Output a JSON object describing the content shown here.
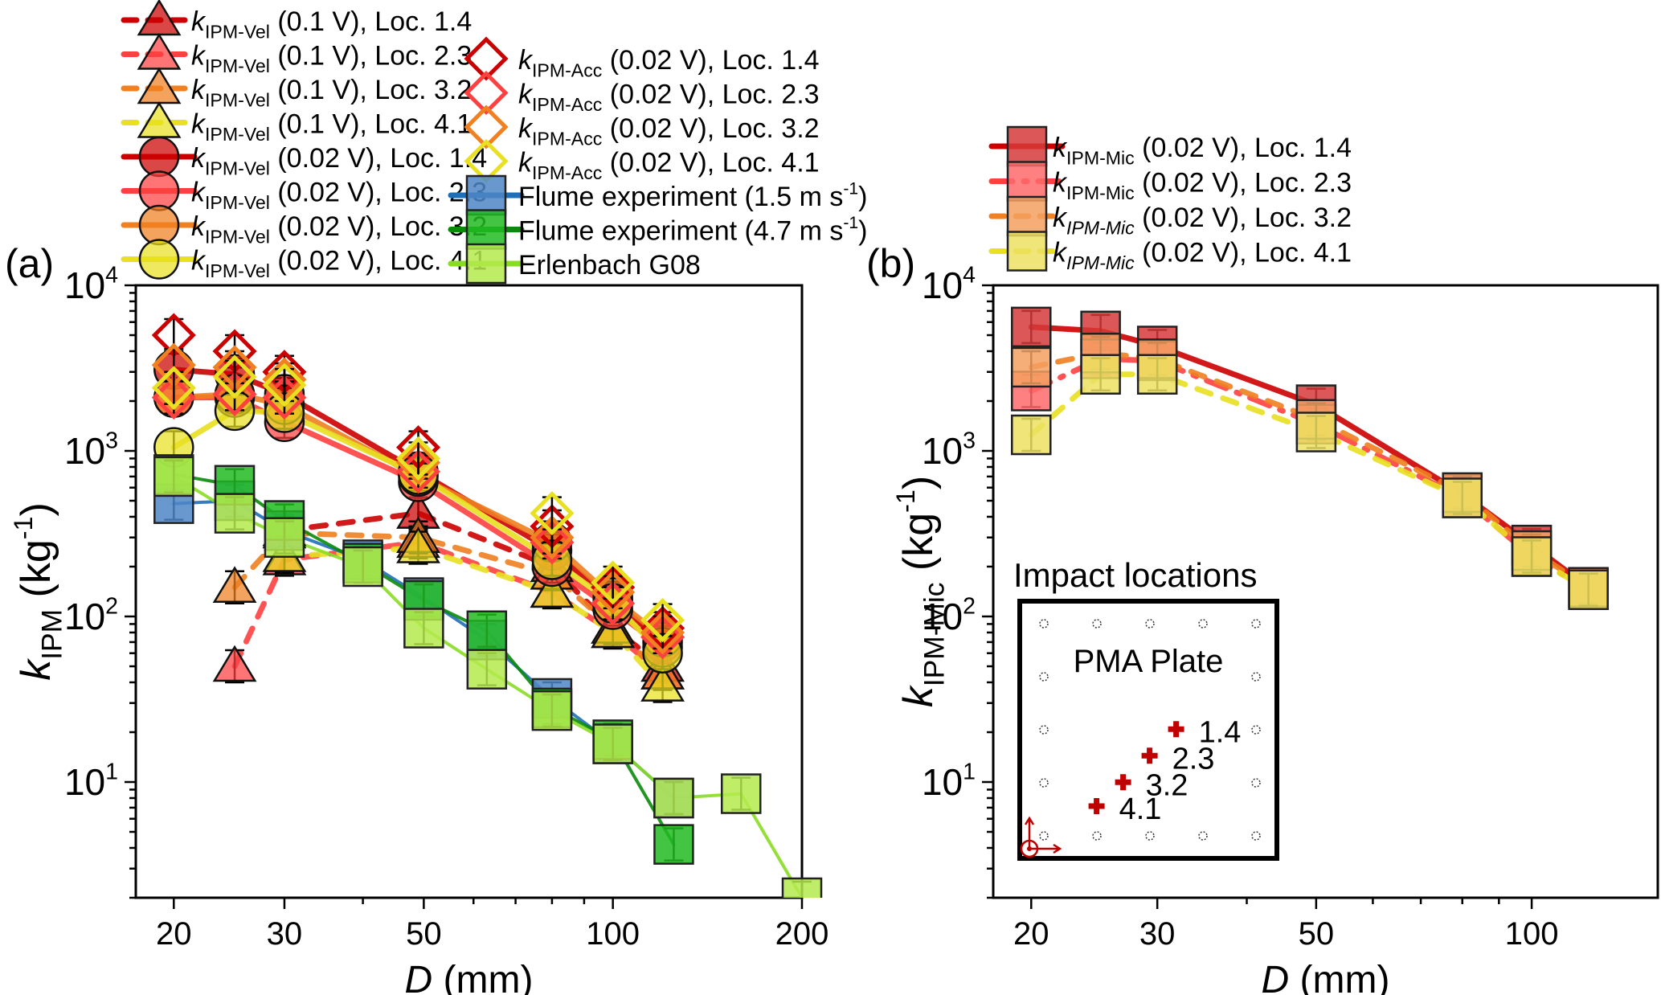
{
  "chart_data": [
    {
      "panel_label": "(a)",
      "type": "line",
      "xlabel_italic": "D",
      "xlabel_rest": " (mm)",
      "ylabel_italic": "k",
      "ylabel_sub": "IPM",
      "ylabel_rest": " (kg",
      "ylabel_sup": "-1",
      "ylabel_close": ")",
      "xscale": "log",
      "yscale": "log",
      "xlim": [
        17.4,
        200
      ],
      "ylim": [
        2,
        10000
      ],
      "xticks": [
        20,
        30,
        50,
        100,
        200
      ],
      "xtick_labels": [
        "20",
        "30",
        "50",
        "100",
        "200"
      ],
      "yticks": [
        10,
        100,
        1000,
        10000
      ],
      "ytick_base": "10",
      "ytick_exps": [
        "1",
        "2",
        "3",
        "4"
      ],
      "legend_position": "top (above plot), two columns",
      "series": [
        {
          "name_k": "k",
          "name_sub": "IPM-Vel",
          "name_rest": " (0.1 V), Loc. 1.4",
          "color": "#cc0000",
          "marker": "triangle",
          "line": "dashed",
          "x": [
            30,
            49,
            80,
            100,
            120
          ],
          "y": [
            330,
            420,
            200,
            85,
            50
          ]
        },
        {
          "name_k": "k",
          "name_sub": "IPM-Vel",
          "name_rest": " (0.1 V), Loc. 2.3",
          "color": "#ff4040",
          "marker": "triangle",
          "line": "dashed",
          "x": [
            25,
            30,
            49,
            80,
            100,
            120
          ],
          "y": [
            50,
            220,
            280,
            140,
            80,
            45
          ]
        },
        {
          "name_k": "k",
          "name_sub": "IPM-Vel",
          "name_rest": " (0.1 V), Loc. 3.2",
          "color": "#f08020",
          "marker": "triangle",
          "line": "dashed",
          "x": [
            25,
            30,
            49,
            80,
            100,
            120
          ],
          "y": [
            150,
            320,
            300,
            180,
            85,
            45
          ]
        },
        {
          "name_k": "k",
          "name_sub": "IPM-Vel",
          "name_rest": " (0.1 V), Loc. 4.1",
          "color": "#e8e020",
          "marker": "triangle",
          "line": "dashed",
          "x": [
            30,
            49,
            80,
            100,
            120
          ],
          "y": [
            230,
            260,
            140,
            80,
            38
          ]
        },
        {
          "name_k": "k",
          "name_sub": "IPM-Vel",
          "name_rest": " (0.02 V), Loc. 1.4",
          "color": "#cc0000",
          "marker": "circle",
          "line": "solid",
          "x": [
            20,
            25,
            30,
            49,
            80,
            100,
            120
          ],
          "y": [
            3100,
            2900,
            2200,
            750,
            250,
            125,
            70
          ]
        },
        {
          "name_k": "k",
          "name_sub": "IPM-Vel",
          "name_rest": " (0.02 V), Loc. 2.3",
          "color": "#ff4040",
          "marker": "circle",
          "line": "solid",
          "x": [
            20,
            25,
            30,
            49,
            80,
            100,
            120
          ],
          "y": [
            2100,
            2100,
            1500,
            650,
            200,
            110,
            65
          ]
        },
        {
          "name_k": "k",
          "name_sub": "IPM-Vel",
          "name_rest": " (0.02 V), Loc. 3.2",
          "color": "#f08020",
          "marker": "circle",
          "line": "solid",
          "x": [
            20,
            25,
            30,
            49,
            80,
            100,
            120
          ],
          "y": [
            2100,
            2200,
            1900,
            700,
            280,
            130,
            75
          ]
        },
        {
          "name_k": "k",
          "name_sub": "IPM-Vel",
          "name_rest": " (0.02 V), Loc. 4.1",
          "color": "#e8e020",
          "marker": "circle",
          "line": "solid",
          "x": [
            20,
            25,
            30,
            49,
            80,
            100,
            120
          ],
          "y": [
            1050,
            1750,
            1700,
            720,
            220,
            120,
            60
          ]
        },
        {
          "name_k": "k",
          "name_sub": "IPM-Acc",
          "name_rest": " (0.02 V), Loc. 1.4",
          "color": "#cc0000",
          "marker": "diamond-open",
          "line": "none",
          "x": [
            20,
            25,
            30,
            49,
            80,
            100,
            120
          ],
          "y": [
            5000,
            4000,
            3000,
            1050,
            350,
            150,
            85
          ]
        },
        {
          "name_k": "k",
          "name_sub": "IPM-Acc",
          "name_rest": " (0.02 V), Loc. 2.3",
          "color": "#ff4040",
          "marker": "diamond-open",
          "line": "none",
          "x": [
            20,
            25,
            30,
            49,
            80,
            100,
            120
          ],
          "y": [
            2100,
            2200,
            2100,
            750,
            280,
            120,
            75
          ]
        },
        {
          "name_k": "k",
          "name_sub": "IPM-Acc",
          "name_rest": " (0.02 V), Loc. 3.2",
          "color": "#f08020",
          "marker": "diamond-open",
          "line": "none",
          "x": [
            20,
            25,
            30,
            49,
            80,
            100,
            120
          ],
          "y": [
            3300,
            3200,
            2700,
            850,
            300,
            140,
            80
          ]
        },
        {
          "name_k": "k",
          "name_sub": "IPM-Acc",
          "name_rest": " (0.02 V), Loc. 4.1",
          "color": "#e8e020",
          "marker": "diamond-open",
          "line": "none",
          "x": [
            20,
            25,
            30,
            49,
            80,
            100,
            120
          ],
          "y": [
            2400,
            2800,
            2500,
            900,
            420,
            160,
            95
          ]
        },
        {
          "name_plain": "Flume experiment (1.5 m s",
          "name_sup": "-1",
          "name_close": ")",
          "color": "#1f6fb8",
          "fill": "#4f86c6",
          "marker": "square",
          "line": "solid",
          "x": [
            20,
            25,
            30,
            40,
            50,
            63,
            80,
            100,
            125
          ],
          "y": [
            480,
            500,
            330,
            220,
            130,
            72,
            32,
            17,
            8
          ]
        },
        {
          "name_plain": "Flume experiment (4.7 m s",
          "name_sup": "-1",
          "name_close": ")",
          "color": "#0a8a0a",
          "fill": "#22bb22",
          "marker": "square",
          "line": "solid",
          "x": [
            20,
            25,
            30,
            40,
            50,
            63,
            80,
            100,
            125
          ],
          "y": [
            720,
            620,
            380,
            210,
            125,
            82,
            28,
            18,
            4.2
          ]
        },
        {
          "name_plain": "Erlenbach G08",
          "name_sup": "",
          "name_close": "",
          "color": "#88dd22",
          "fill": "#b5ea4e",
          "marker": "square",
          "line": "solid",
          "x": [
            20,
            25,
            30,
            40,
            50,
            63,
            80,
            100,
            125,
            160,
            200
          ],
          "y": [
            700,
            420,
            300,
            200,
            85,
            48,
            27,
            17,
            8,
            8.5,
            2
          ]
        }
      ]
    },
    {
      "panel_label": "(b)",
      "type": "line",
      "xlabel_italic": "D",
      "xlabel_rest": " (mm)",
      "ylabel_italic": "k",
      "ylabel_sub": "IPM-Mic",
      "ylabel_rest": " (kg",
      "ylabel_sup": "-1",
      "ylabel_close": ")",
      "xscale": "log",
      "yscale": "log",
      "xlim": [
        17.7,
        150
      ],
      "ylim": [
        2,
        10000
      ],
      "xticks": [
        20,
        30,
        50,
        100
      ],
      "xtick_labels": [
        "20",
        "30",
        "50",
        "100"
      ],
      "yticks": [
        10,
        100,
        1000,
        10000
      ],
      "ytick_base": "10",
      "ytick_exps": [
        "1",
        "2",
        "3",
        "4"
      ],
      "legend_position": "top (above plot)",
      "series": [
        {
          "name_k": "k",
          "name_sub": "IPM-Mic",
          "name_rest": " (0.02 V), Loc. 1.4",
          "color": "#cc0000",
          "fill": "#d63a3a",
          "marker": "square",
          "line": "solid",
          "x": [
            20,
            25,
            30,
            50,
            80,
            100,
            120
          ],
          "y": [
            5600,
            5300,
            4300,
            1900,
            550,
            270,
            150
          ]
        },
        {
          "name_k": "k",
          "name_sub": "IPM-Mic",
          "name_rest": " (0.02 V), Loc. 2.3",
          "color": "#ff4040",
          "fill": "#ff6a6a",
          "marker": "square",
          "line": "dashdot",
          "x": [
            20,
            25,
            30,
            50,
            80,
            100,
            120
          ],
          "y": [
            2300,
            3600,
            3500,
            1450,
            520,
            230,
            145
          ]
        },
        {
          "name_k": "k",
          "name_sub": "IPM-Mic",
          "name_rest": " (0.02 V), Loc. 3.2",
          "color": "#f08020",
          "fill": "#f4a060",
          "marker": "square",
          "line": "dashed",
          "x": [
            20,
            25,
            30,
            50,
            80,
            100,
            120
          ],
          "y": [
            3200,
            3900,
            3600,
            1550,
            560,
            250,
            150
          ]
        },
        {
          "name_k": "k",
          "name_sub": "IPM-Mic",
          "name_rest": " (0.02 V), Loc. 4.1",
          "color": "#e8e020",
          "fill": "#ece060",
          "marker": "square",
          "line": "dashed",
          "x": [
            20,
            25,
            30,
            50,
            80,
            100,
            120
          ],
          "y": [
            1250,
            2900,
            2900,
            1300,
            520,
            230,
            145
          ]
        }
      ],
      "inset": {
        "title": "Impact locations",
        "plate_label": "PMA Plate",
        "marker_color": "#c00000",
        "points": [
          {
            "label": "1.4",
            "col": 2.1,
            "row": 2.05
          },
          {
            "label": "2.3",
            "col": 1.6,
            "row": 2.55
          },
          {
            "label": "3.2",
            "col": 1.1,
            "row": 3.05
          },
          {
            "label": "4.1",
            "col": 0.6,
            "row": 3.5
          }
        ],
        "grid_cols": 5,
        "grid_rows": 5
      }
    }
  ]
}
